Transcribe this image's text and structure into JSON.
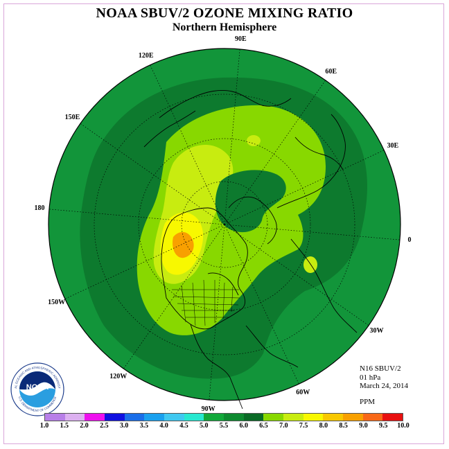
{
  "title": "NOAA SBUV/2 OZONE MIXING RATIO",
  "subtitle": "Northern Hemisphere",
  "longitude_labels": [
    "90E",
    "60E",
    "30E",
    "0",
    "30W",
    "60W",
    "90W",
    "120W",
    "150W",
    "180",
    "150E",
    "120E"
  ],
  "info": {
    "instrument": "N16 SBUV/2",
    "level": "01 hPa",
    "date": "March 24, 2014",
    "units": "PPM"
  },
  "logo": {
    "center_text": "NOAA",
    "ring_top": "NATIONAL OCEANIC AND ATMOSPHERIC ADMINISTRATION",
    "ring_bottom": "U.S. DEPARTMENT OF COMMERCE"
  },
  "colorbar": {
    "ticks": [
      "1.0",
      "1.5",
      "2.0",
      "2.5",
      "3.0",
      "3.5",
      "4.0",
      "4.5",
      "5.0",
      "5.5",
      "6.0",
      "6.5",
      "7.0",
      "7.5",
      "8.0",
      "8.5",
      "9.0",
      "9.5",
      "10.0"
    ],
    "colors": [
      "#b87fe8",
      "#dcb0f0",
      "#ee10ee",
      "#1010e0",
      "#1a6ee8",
      "#1aa0ee",
      "#40c8f0",
      "#28e8d0",
      "#12a83a",
      "#0e8a30",
      "#0a6a26",
      "#88d800",
      "#c8ec10",
      "#f8f800",
      "#f8c800",
      "#f8a000",
      "#f86818",
      "#e81010",
      "#8a5a3a"
    ]
  },
  "map_colors": {
    "outer": "#12953a",
    "mid": "#0d7a2e",
    "light_green": "#88d800",
    "yellow_green": "#c8ec10",
    "yellow": "#f8f800",
    "gold": "#f8c800",
    "orange": "#f8a000",
    "coast": "#000000"
  }
}
